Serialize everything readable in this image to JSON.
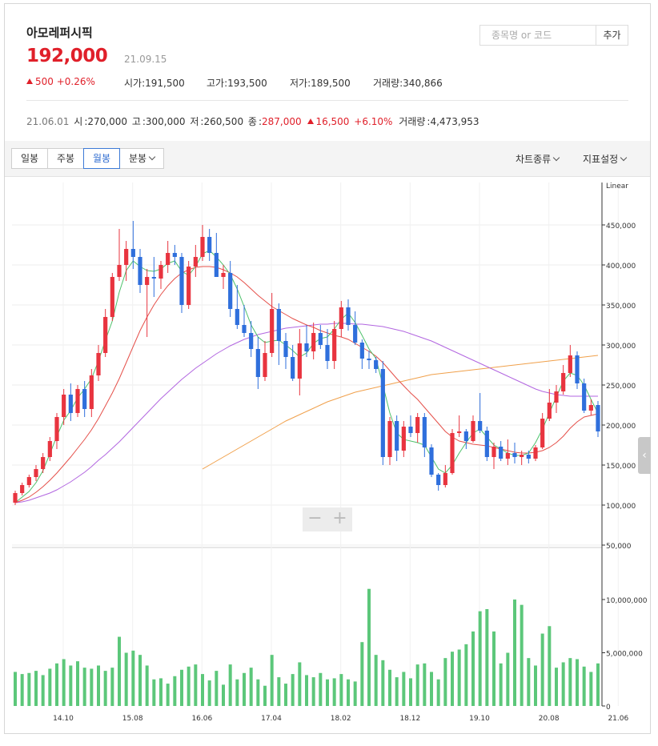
{
  "stock": {
    "name": "아모레퍼시픽",
    "price": "192,000",
    "date": "21.09.15",
    "change": "500",
    "change_pct": "+0.26%",
    "open_label": "시가",
    "open": "191,500",
    "high_label": "고가",
    "high": "193,500",
    "low_label": "저가",
    "low": "189,500",
    "volume_label": "거래량",
    "volume": "340,866"
  },
  "search": {
    "placeholder": "종목명 or 코드",
    "button": "추가"
  },
  "month_summary": {
    "date": "21.06.01",
    "open_label": "시",
    "open": "270,000",
    "high_label": "고",
    "high": "300,000",
    "low_label": "저",
    "low": "260,500",
    "close_label": "종",
    "close": "287,000",
    "change": "16,500",
    "change_pct": "+6.10%",
    "volume_label": "거래량",
    "volume": "4,473,953"
  },
  "tabs": [
    {
      "label": "일봉",
      "active": false
    },
    {
      "label": "주봉",
      "active": false
    },
    {
      "label": "월봉",
      "active": true
    },
    {
      "label": "분봉",
      "active": false
    }
  ],
  "tools": {
    "chart_type": "차트종류",
    "indicator": "지표설정"
  },
  "scale_label": "Linear",
  "colors": {
    "up": "#e8343f",
    "down": "#2f6fdc",
    "volume": "#5cc77a",
    "ma5": "#4ec16b",
    "ma20": "#e5504a",
    "ma60": "#b266e0",
    "ma120": "#f0a04b"
  },
  "chart_data": {
    "type": "candlestick",
    "price_axis": {
      "min": 50000,
      "max": 450000,
      "ticks": [
        "450,000",
        "400,000",
        "350,000",
        "300,000",
        "250,000",
        "200,000",
        "150,000",
        "100,000",
        "50,000"
      ]
    },
    "volume_axis": {
      "max": 12000000,
      "ticks": [
        "10,000,000",
        "5,000,000",
        "0"
      ]
    },
    "x_ticks": [
      "14.10",
      "15.08",
      "16.06",
      "17.04",
      "18.02",
      "18.12",
      "19.10",
      "20.08",
      "21.06"
    ],
    "candles": [
      [
        103000,
        118000,
        100000,
        115000,
        3.2
      ],
      [
        115000,
        128000,
        112000,
        125000,
        3.0
      ],
      [
        125000,
        138000,
        122000,
        135000,
        3.1
      ],
      [
        135000,
        150000,
        130000,
        145000,
        3.3
      ],
      [
        145000,
        165000,
        140000,
        160000,
        2.9
      ],
      [
        160000,
        185000,
        155000,
        180000,
        3.5
      ],
      [
        180000,
        215000,
        170000,
        210000,
        4.0
      ],
      [
        210000,
        245000,
        200000,
        238000,
        4.4
      ],
      [
        238000,
        252000,
        205000,
        215000,
        3.8
      ],
      [
        215000,
        250000,
        210000,
        245000,
        4.2
      ],
      [
        245000,
        255000,
        210000,
        220000,
        3.6
      ],
      [
        220000,
        270000,
        210000,
        262000,
        3.5
      ],
      [
        262000,
        300000,
        255000,
        290000,
        3.8
      ],
      [
        290000,
        345000,
        285000,
        335000,
        3.3
      ],
      [
        335000,
        390000,
        330000,
        385000,
        3.6
      ],
      [
        385000,
        445000,
        380000,
        400000,
        6.5
      ],
      [
        400000,
        430000,
        380000,
        420000,
        5.0
      ],
      [
        420000,
        455000,
        395000,
        410000,
        5.2
      ],
      [
        410000,
        420000,
        365000,
        375000,
        4.8
      ],
      [
        375000,
        395000,
        310000,
        385000,
        3.8
      ],
      [
        385000,
        410000,
        360000,
        383000,
        2.5
      ],
      [
        383000,
        405000,
        370000,
        400000,
        2.6
      ],
      [
        400000,
        430000,
        390000,
        415000,
        2.1
      ],
      [
        415000,
        425000,
        400000,
        410000,
        2.8
      ],
      [
        410000,
        415000,
        340000,
        350000,
        3.4
      ],
      [
        350000,
        405000,
        345000,
        398000,
        3.7
      ],
      [
        398000,
        425000,
        385000,
        410000,
        3.9
      ],
      [
        410000,
        450000,
        405000,
        435000,
        3.0
      ],
      [
        435000,
        445000,
        405000,
        415000,
        2.4
      ],
      [
        415000,
        440000,
        385000,
        385000,
        3.3
      ],
      [
        385000,
        400000,
        370000,
        390000,
        2.0
      ],
      [
        390000,
        405000,
        335000,
        345000,
        3.9
      ],
      [
        345000,
        375000,
        320000,
        325000,
        2.5
      ],
      [
        325000,
        350000,
        310000,
        315000,
        3.1
      ],
      [
        315000,
        330000,
        285000,
        295000,
        3.6
      ],
      [
        295000,
        310000,
        245000,
        260000,
        2.5
      ],
      [
        260000,
        305000,
        255000,
        290000,
        1.9
      ],
      [
        290000,
        365000,
        285000,
        345000,
        4.8
      ],
      [
        345000,
        352000,
        275000,
        305000,
        2.7
      ],
      [
        305000,
        315000,
        270000,
        285000,
        2.1
      ],
      [
        285000,
        300000,
        255000,
        258000,
        3.0
      ],
      [
        258000,
        320000,
        237000,
        302000,
        4.1
      ],
      [
        302000,
        325000,
        285000,
        292000,
        2.9
      ],
      [
        292000,
        328000,
        282000,
        315000,
        2.7
      ],
      [
        315000,
        325000,
        295000,
        300000,
        3.1
      ],
      [
        300000,
        320000,
        270000,
        280000,
        2.5
      ],
      [
        280000,
        330000,
        270000,
        320000,
        2.6
      ],
      [
        320000,
        355000,
        310000,
        347000,
        3.0
      ],
      [
        347000,
        357000,
        318000,
        325000,
        2.5
      ],
      [
        325000,
        342000,
        300000,
        303000,
        2.3
      ],
      [
        303000,
        307000,
        270000,
        283000,
        6.0
      ],
      [
        283000,
        293000,
        270000,
        281000,
        11.0
      ],
      [
        281000,
        285000,
        265000,
        270000,
        4.8
      ],
      [
        270000,
        280000,
        150000,
        160000,
        4.3
      ],
      [
        160000,
        210000,
        150000,
        205000,
        3.4
      ],
      [
        205000,
        212000,
        155000,
        168000,
        2.7
      ],
      [
        168000,
        205000,
        160000,
        198000,
        3.2
      ],
      [
        198000,
        212000,
        185000,
        190000,
        2.6
      ],
      [
        190000,
        215000,
        178000,
        210000,
        3.9
      ],
      [
        210000,
        215000,
        160000,
        172000,
        4.0
      ],
      [
        172000,
        176000,
        135000,
        138000,
        3.2
      ],
      [
        138000,
        140000,
        118000,
        125000,
        2.5
      ],
      [
        125000,
        150000,
        122000,
        140000,
        4.5
      ],
      [
        140000,
        195000,
        138000,
        190000,
        5.1
      ],
      [
        190000,
        212000,
        185000,
        192000,
        5.3
      ],
      [
        192000,
        195000,
        170000,
        180000,
        5.8
      ],
      [
        180000,
        212000,
        178000,
        205000,
        7.0
      ],
      [
        205000,
        240000,
        190000,
        193000,
        8.9
      ],
      [
        193000,
        198000,
        155000,
        160000,
        9.1
      ],
      [
        160000,
        178000,
        145000,
        173000,
        7.0
      ],
      [
        173000,
        180000,
        155000,
        158000,
        4.0
      ],
      [
        158000,
        182000,
        150000,
        165000,
        5.0
      ],
      [
        165000,
        178000,
        152000,
        160000,
        10.0
      ],
      [
        160000,
        168000,
        150000,
        163000,
        9.5
      ],
      [
        163000,
        168000,
        152000,
        158000,
        4.5
      ],
      [
        158000,
        175000,
        155000,
        172000,
        3.8
      ],
      [
        172000,
        215000,
        170000,
        208000,
        6.8
      ],
      [
        208000,
        245000,
        205000,
        228000,
        7.5
      ],
      [
        228000,
        250000,
        215000,
        242000,
        3.6
      ],
      [
        242000,
        275000,
        238000,
        265000,
        4.1
      ],
      [
        265000,
        300000,
        260000,
        287000,
        4.5
      ],
      [
        287000,
        292000,
        245000,
        252000,
        4.4
      ],
      [
        252000,
        258000,
        215000,
        218000,
        3.7
      ],
      [
        218000,
        232000,
        212000,
        225000,
        3.2
      ],
      [
        225000,
        230000,
        185000,
        192000,
        4.0
      ]
    ],
    "ma": {
      "ma5": [
        103,
        110,
        117,
        128,
        143,
        164,
        186,
        206,
        218,
        234,
        245,
        258,
        280,
        306,
        330,
        366,
        393,
        405,
        398,
        393,
        392,
        395,
        402,
        405,
        392,
        387,
        398,
        414,
        418,
        410,
        400,
        388,
        370,
        348,
        325,
        310,
        303,
        305,
        306,
        300,
        293,
        285,
        290,
        302,
        308,
        310,
        320,
        332,
        340,
        328,
        312,
        295,
        283,
        250,
        215,
        190,
        182,
        180,
        178,
        175,
        160,
        145,
        140,
        150,
        165,
        178,
        190,
        195,
        185,
        175,
        170,
        165,
        162,
        162,
        165,
        178,
        195,
        215,
        235,
        255,
        265,
        262,
        250,
        232,
        215
      ],
      "ma20": [
        103,
        106,
        110,
        116,
        123,
        131,
        140,
        150,
        160,
        171,
        182,
        194,
        208,
        224,
        240,
        258,
        278,
        298,
        318,
        335,
        350,
        363,
        374,
        383,
        390,
        394,
        397,
        398,
        398,
        397,
        394,
        390,
        385,
        378,
        370,
        362,
        355,
        348,
        343,
        338,
        333,
        329,
        325,
        322,
        318,
        315,
        312,
        310,
        307,
        302,
        297,
        292,
        286,
        278,
        268,
        258,
        249,
        240,
        232,
        222,
        212,
        202,
        192,
        185,
        180,
        178,
        176,
        175,
        174,
        172,
        170,
        168,
        166,
        165,
        165,
        166,
        168,
        172,
        178,
        186,
        196,
        204,
        210,
        212,
        214
      ],
      "ma60": [
        103,
        104,
        106,
        109,
        112,
        115,
        119,
        124,
        129,
        135,
        141,
        148,
        156,
        163,
        171,
        179,
        188,
        197,
        206,
        215,
        224,
        233,
        241,
        249,
        257,
        264,
        271,
        277,
        283,
        289,
        294,
        299,
        303,
        307,
        310,
        313,
        315,
        317,
        319,
        321,
        322,
        323,
        324,
        325,
        326,
        326,
        327,
        327,
        327,
        326,
        326,
        325,
        324,
        323,
        321,
        319,
        317,
        314,
        311,
        308,
        305,
        301,
        297,
        293,
        289,
        285,
        281,
        277,
        273,
        269,
        265,
        261,
        257,
        253,
        249,
        245,
        242,
        240,
        238,
        237,
        236,
        236,
        236,
        236,
        236
      ],
      "ma120_start": 27,
      "ma120": [
        145,
        150,
        155,
        160,
        165,
        170,
        175,
        180,
        185,
        190,
        195,
        200,
        205,
        209,
        213,
        217,
        221,
        225,
        229,
        232,
        235,
        238,
        241,
        243,
        245,
        247,
        249,
        251,
        253,
        255,
        257,
        259,
        261,
        263,
        264,
        265,
        266,
        267,
        268,
        269,
        270,
        271,
        272,
        273,
        274,
        275,
        276,
        277,
        278,
        279,
        280,
        281,
        282,
        283,
        284,
        285,
        286,
        287
      ]
    }
  }
}
